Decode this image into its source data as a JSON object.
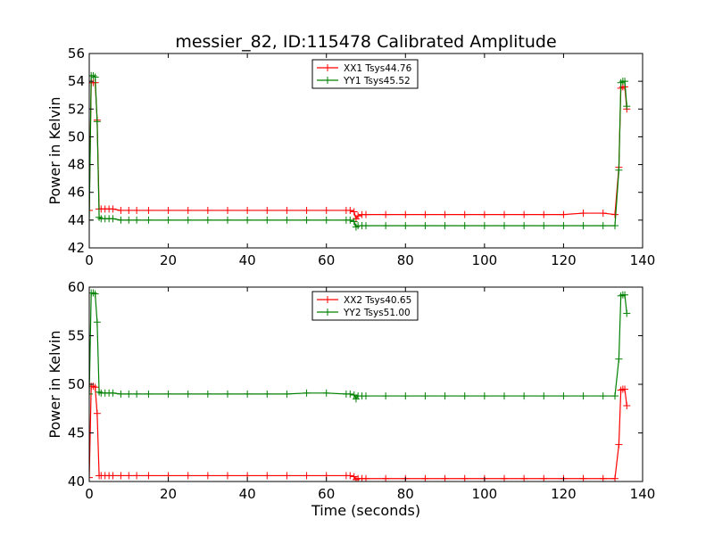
{
  "figure": {
    "title": "messier_82, ID:115478 Calibrated Amplitude",
    "xlabel": "Time (seconds)"
  },
  "chart_data": [
    {
      "type": "line",
      "title": "messier_82, ID:115478 Calibrated Amplitude",
      "xlabel": "",
      "ylabel": "Power in Kelvin",
      "xlim": [
        0,
        140
      ],
      "ylim": [
        42,
        56
      ],
      "xticks": [
        0,
        20,
        40,
        60,
        80,
        100,
        120,
        140
      ],
      "yticks": [
        42,
        44,
        46,
        48,
        50,
        52,
        54,
        56
      ],
      "grid": false,
      "legend_position": "top-center",
      "series": [
        {
          "name": "XX1 Tsys44.76",
          "color": "#ff0000",
          "marker": "+",
          "x": [
            0,
            0.5,
            1,
            1.5,
            2,
            2.5,
            3,
            4,
            5,
            6,
            8,
            10,
            12,
            15,
            20,
            25,
            30,
            35,
            40,
            45,
            50,
            55,
            60,
            65,
            66,
            67,
            67.5,
            68,
            69,
            70,
            75,
            80,
            85,
            90,
            95,
            100,
            105,
            110,
            115,
            120,
            125,
            130,
            133,
            134,
            134.5,
            135,
            135.5,
            136
          ],
          "y": [
            44.7,
            53.9,
            53.9,
            53.9,
            51.2,
            44.8,
            44.8,
            44.8,
            44.8,
            44.8,
            44.7,
            44.7,
            44.7,
            44.7,
            44.7,
            44.7,
            44.7,
            44.7,
            44.7,
            44.7,
            44.7,
            44.7,
            44.7,
            44.7,
            44.7,
            44.6,
            44.1,
            44.3,
            44.4,
            44.4,
            44.4,
            44.4,
            44.4,
            44.4,
            44.4,
            44.4,
            44.4,
            44.4,
            44.4,
            44.4,
            44.5,
            44.5,
            44.4,
            47.8,
            53.5,
            53.6,
            53.6,
            52.0
          ]
        },
        {
          "name": "YY1 Tsys45.52",
          "color": "#008000",
          "marker": "+",
          "x": [
            0,
            0.5,
            1,
            1.5,
            2,
            2.5,
            3,
            4,
            5,
            6,
            8,
            10,
            12,
            15,
            20,
            25,
            30,
            35,
            40,
            45,
            50,
            55,
            60,
            65,
            66,
            67,
            67.5,
            68,
            69,
            70,
            75,
            80,
            85,
            90,
            95,
            100,
            105,
            110,
            115,
            120,
            125,
            130,
            133,
            134,
            134.5,
            135,
            135.5,
            136
          ],
          "y": [
            44.0,
            54.4,
            54.4,
            54.3,
            51.1,
            44.2,
            44.1,
            44.1,
            44.1,
            44.1,
            44.0,
            44.0,
            44.0,
            44.0,
            44.0,
            44.0,
            44.0,
            44.0,
            44.0,
            44.0,
            44.0,
            44.0,
            44.0,
            44.0,
            44.0,
            43.9,
            43.5,
            43.6,
            43.6,
            43.6,
            43.6,
            43.6,
            43.6,
            43.6,
            43.6,
            43.6,
            43.6,
            43.6,
            43.6,
            43.6,
            43.6,
            43.6,
            43.6,
            47.6,
            53.9,
            54.0,
            54.0,
            52.2
          ]
        }
      ]
    },
    {
      "type": "line",
      "title": "",
      "xlabel": "Time (seconds)",
      "ylabel": "Power in Kelvin",
      "xlim": [
        0,
        140
      ],
      "ylim": [
        40,
        60
      ],
      "xticks": [
        0,
        20,
        40,
        60,
        80,
        100,
        120,
        140
      ],
      "yticks": [
        40,
        45,
        50,
        55,
        60
      ],
      "grid": false,
      "legend_position": "top-center",
      "series": [
        {
          "name": "XX2 Tsys40.65",
          "color": "#ff0000",
          "marker": "+",
          "x": [
            0,
            0.5,
            1,
            1.5,
            2,
            2.5,
            3,
            4,
            5,
            6,
            8,
            10,
            12,
            15,
            20,
            25,
            30,
            35,
            40,
            45,
            50,
            55,
            60,
            65,
            66,
            67,
            67.5,
            68,
            69,
            70,
            75,
            80,
            85,
            90,
            95,
            100,
            105,
            110,
            115,
            120,
            125,
            130,
            133,
            134,
            134.5,
            135,
            135.5,
            136
          ],
          "y": [
            40.4,
            49.8,
            49.8,
            49.7,
            47.0,
            40.6,
            40.6,
            40.6,
            40.6,
            40.6,
            40.6,
            40.6,
            40.6,
            40.6,
            40.6,
            40.6,
            40.6,
            40.6,
            40.6,
            40.6,
            40.6,
            40.6,
            40.6,
            40.6,
            40.6,
            40.5,
            40.2,
            40.3,
            40.3,
            40.3,
            40.3,
            40.3,
            40.3,
            40.3,
            40.3,
            40.3,
            40.3,
            40.3,
            40.3,
            40.3,
            40.3,
            40.3,
            40.3,
            43.8,
            49.4,
            49.5,
            49.5,
            47.8
          ]
        },
        {
          "name": "YY2 Tsys51.00",
          "color": "#008000",
          "marker": "+",
          "x": [
            0,
            0.5,
            1,
            1.5,
            2,
            2.5,
            3,
            4,
            5,
            6,
            8,
            10,
            12,
            15,
            20,
            25,
            30,
            35,
            40,
            45,
            50,
            55,
            60,
            65,
            66,
            67,
            67.5,
            68,
            69,
            70,
            75,
            80,
            85,
            90,
            95,
            100,
            105,
            110,
            115,
            120,
            125,
            130,
            133,
            134,
            134.5,
            135,
            135.5,
            136
          ],
          "y": [
            49.0,
            59.4,
            59.4,
            59.3,
            56.4,
            49.2,
            49.1,
            49.1,
            49.1,
            49.1,
            49.0,
            49.0,
            49.0,
            49.0,
            49.0,
            49.0,
            49.0,
            49.0,
            49.0,
            49.0,
            49.0,
            49.1,
            49.1,
            49.0,
            49.0,
            48.9,
            48.5,
            48.8,
            48.8,
            48.8,
            48.8,
            48.8,
            48.8,
            48.8,
            48.8,
            48.8,
            48.8,
            48.8,
            48.8,
            48.8,
            48.8,
            48.8,
            48.8,
            52.6,
            59.1,
            59.2,
            59.2,
            57.3
          ]
        }
      ]
    }
  ]
}
